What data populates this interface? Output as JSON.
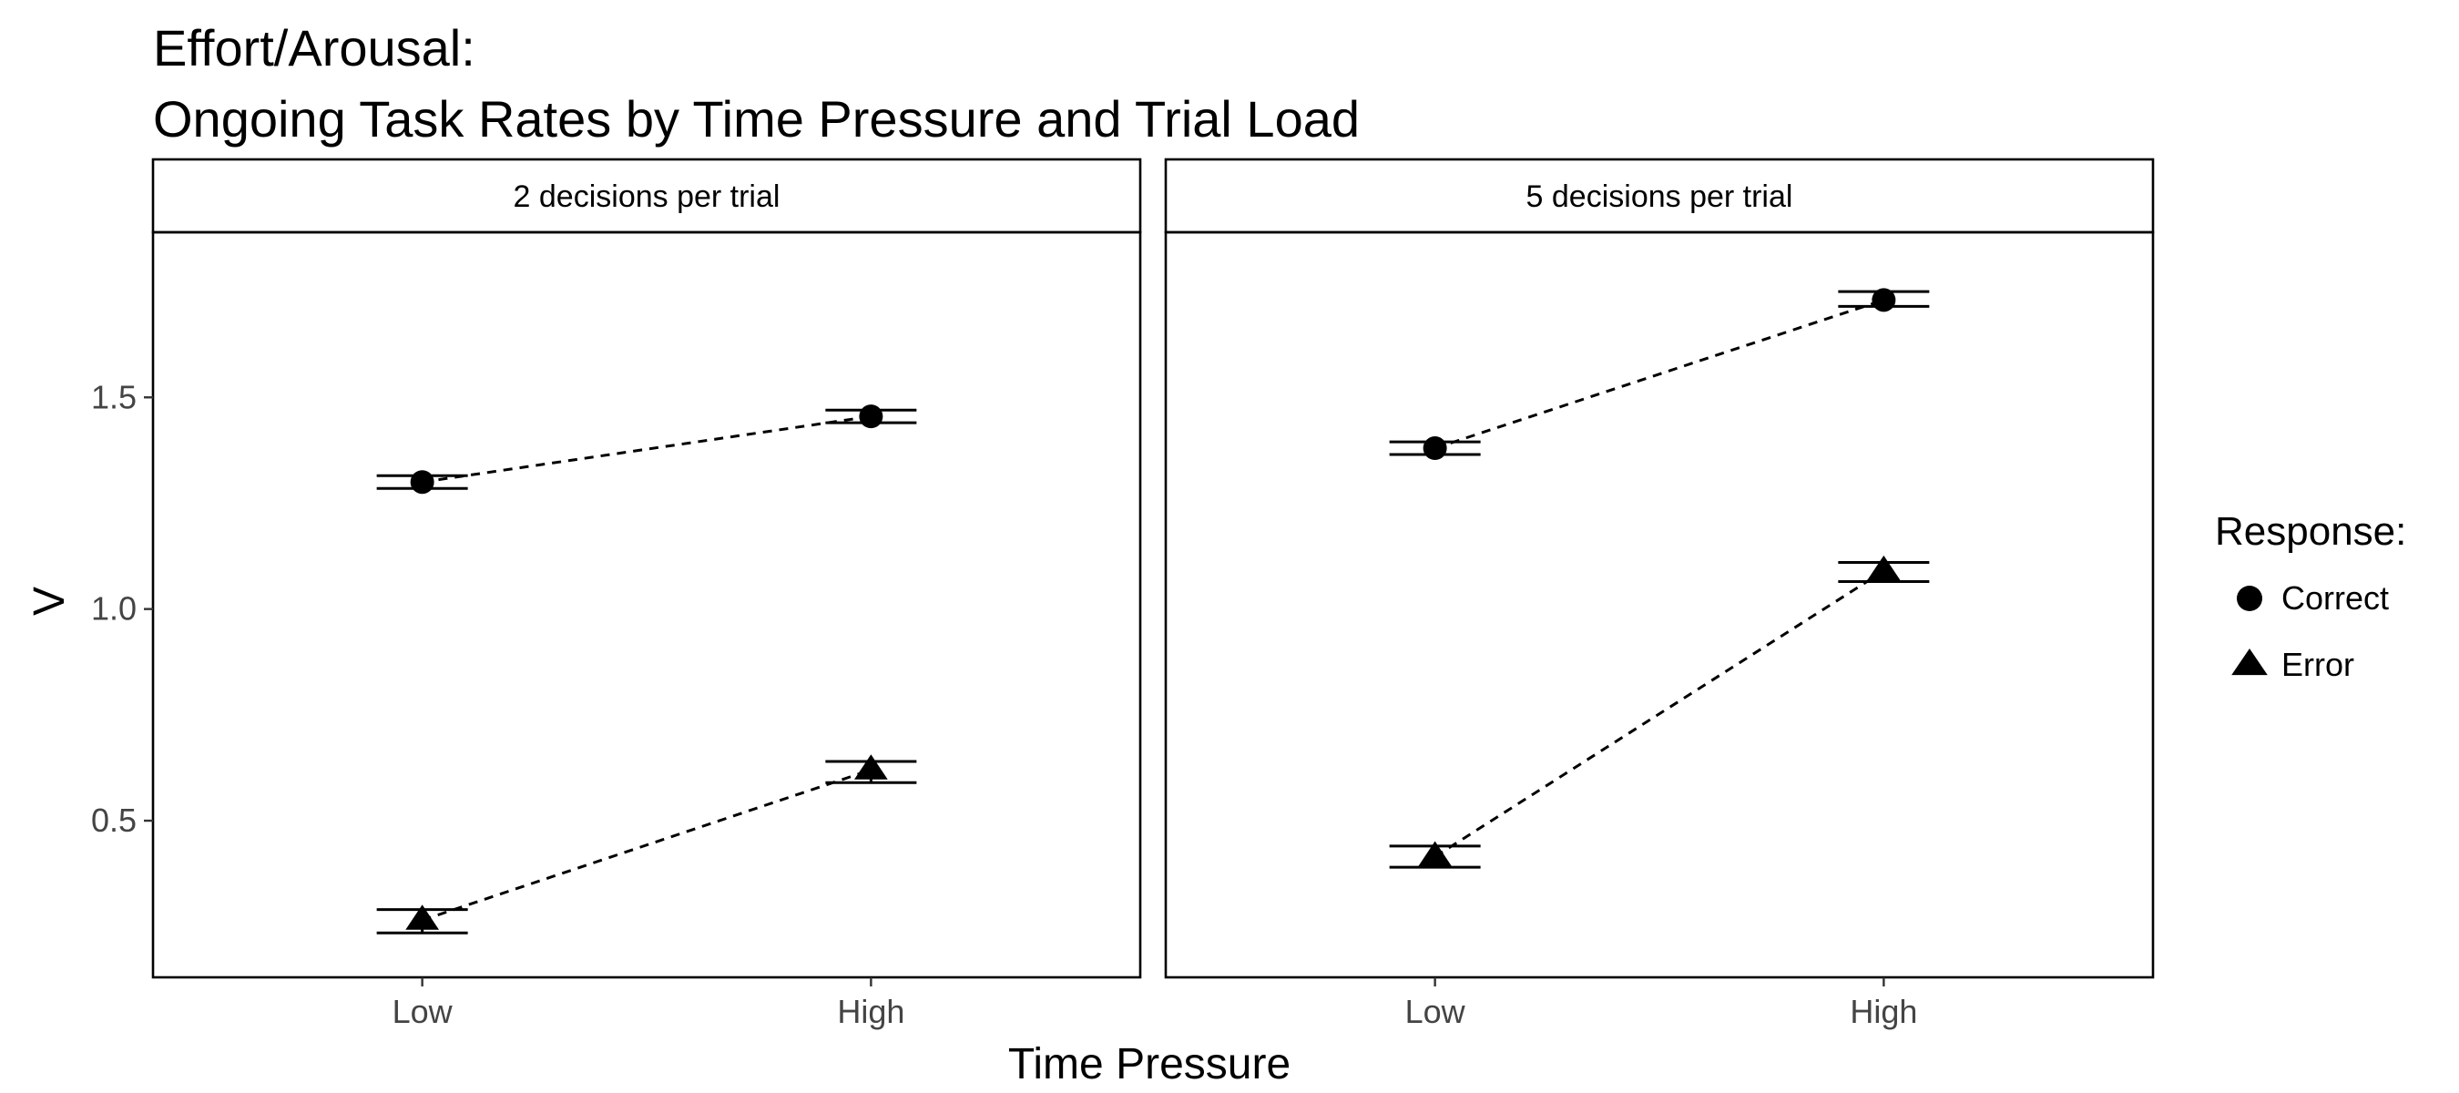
{
  "chart_data": {
    "type": "line",
    "title_lines": [
      "Effort/Arousal:",
      "Ongoing Task Rates by Time Pressure and Trial Load"
    ],
    "xlabel": "Time Pressure",
    "ylabel": "V",
    "categories": [
      "Low",
      "High"
    ],
    "yticks": [
      0.5,
      1.0,
      1.5
    ],
    "ytick_labels": [
      "0.5",
      "1.0",
      "1.5"
    ],
    "ylim": [
      0.13,
      1.89
    ],
    "grid": false,
    "legend": {
      "title": "Response:",
      "position": "right",
      "entries": [
        {
          "label": "Correct",
          "shape": "circle"
        },
        {
          "label": "Error",
          "shape": "triangle"
        }
      ]
    },
    "panels": [
      {
        "strip_label": "2 decisions per trial",
        "series": [
          {
            "name": "Correct",
            "values": [
              1.3,
              1.455
            ],
            "err_low": [
              1.285,
              1.44
            ],
            "err_high": [
              1.315,
              1.47
            ]
          },
          {
            "name": "Error",
            "values": [
              0.265,
              0.62
            ],
            "err_low": [
              0.235,
              0.59
            ],
            "err_high": [
              0.29,
              0.64
            ]
          }
        ]
      },
      {
        "strip_label": "5 decisions per trial",
        "series": [
          {
            "name": "Correct",
            "values": [
              1.38,
              1.73
            ],
            "err_low": [
              1.365,
              1.715
            ],
            "err_high": [
              1.395,
              1.75
            ]
          },
          {
            "name": "Error",
            "values": [
              0.415,
              1.09
            ],
            "err_low": [
              0.39,
              1.065
            ],
            "err_high": [
              0.44,
              1.11
            ]
          }
        ]
      }
    ]
  }
}
